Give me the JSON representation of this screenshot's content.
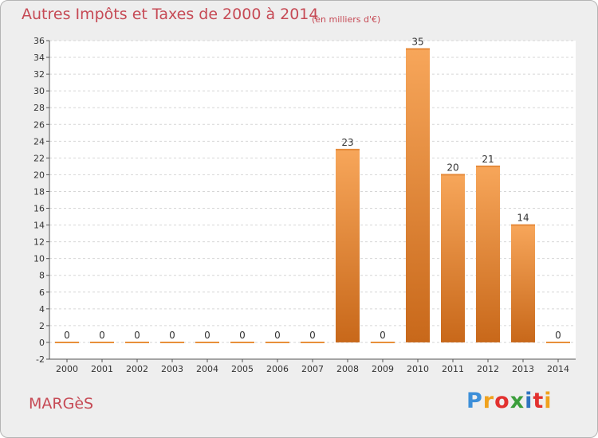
{
  "header": {
    "title": "Autres Impôts et Taxes de 2000 à 2014",
    "subtitle": "(en milliers d'€)"
  },
  "footer": {
    "commune": "MARGèS",
    "logo_letters": [
      "P",
      "r",
      "o",
      "x",
      "i",
      "t",
      "i"
    ],
    "logo_colors": [
      "#3d8fd9",
      "#f0a21e",
      "#e2312f",
      "#3b9e3b",
      "#2f74c0",
      "#e2312f",
      "#f0a21e"
    ]
  },
  "chart_data": {
    "type": "bar",
    "categories": [
      "2000",
      "2001",
      "2002",
      "2003",
      "2004",
      "2005",
      "2006",
      "2007",
      "2008",
      "2009",
      "2010",
      "2011",
      "2012",
      "2013",
      "2014"
    ],
    "values": [
      0,
      0,
      0,
      0,
      0,
      0,
      0,
      0,
      23,
      0,
      35,
      20,
      21,
      14,
      0
    ],
    "data_labels": [
      "0",
      "0",
      "0",
      "0",
      "0",
      "0",
      "0",
      "0",
      "23",
      "0",
      "35",
      "20",
      "21",
      "14",
      "0"
    ],
    "ylim": [
      -2,
      36
    ],
    "yticks": [
      -2,
      0,
      2,
      4,
      6,
      8,
      10,
      12,
      14,
      16,
      18,
      20,
      22,
      24,
      26,
      28,
      30,
      32,
      34,
      36
    ],
    "grid": true,
    "colors": {
      "bar_top": "#f7a65a",
      "bar_bottom": "#c8681a",
      "plot_bg": "#ffffff",
      "grid": "#d6d6d6",
      "axis_text": "#333333"
    }
  }
}
